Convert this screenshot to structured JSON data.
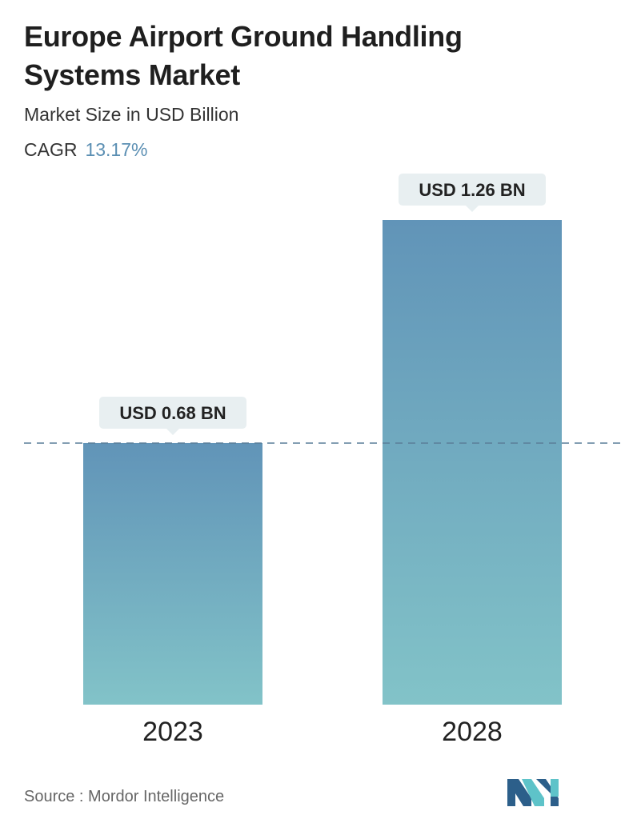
{
  "header": {
    "title_line1": "Europe Airport Ground Handling",
    "title_line2": "Systems Market",
    "subtitle": "Market Size in USD Billion",
    "cagr_label": "CAGR",
    "cagr_value": "13.17%"
  },
  "chart_data": {
    "type": "bar",
    "categories": [
      "2023",
      "2028"
    ],
    "values": [
      0.68,
      1.26
    ],
    "value_labels": [
      "USD 0.68 BN",
      "USD 1.26 BN"
    ],
    "ylim": [
      0,
      1.26
    ],
    "grid": false,
    "reference_line_value": 0.68,
    "colors": {
      "bar_top": "#6194b8",
      "bar_bottom": "#82c3c8",
      "label_bg": "#e8eff1",
      "dashed_line": "#5a7f99"
    }
  },
  "footer": {
    "source_text": "Source :  Mordor Intelligence"
  },
  "logo": {
    "icon": "mordor-intelligence-logo-icon",
    "colors": [
      "#2c5f8a",
      "#5ec3c9"
    ]
  }
}
